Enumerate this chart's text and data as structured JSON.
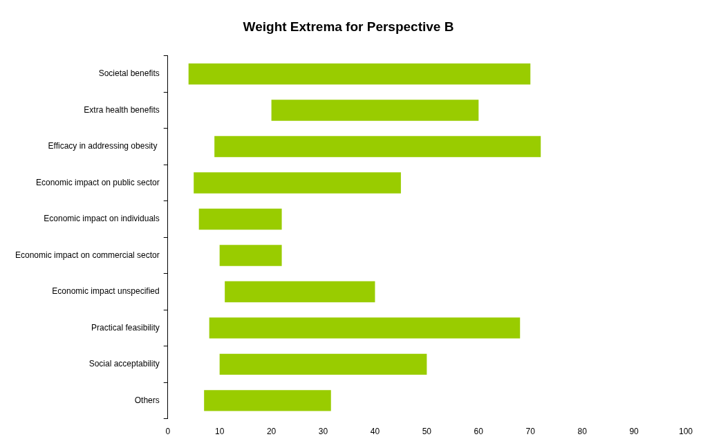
{
  "chart_data": {
    "type": "bar",
    "title": "Weight Extrema for Perspective B",
    "orientation": "horizontal",
    "categories": [
      "Societal benefits",
      "Extra health benefits",
      "Efficacy in addressing obesity ",
      "Economic impact on public sector",
      "Economic impact on individuals",
      "Economic impact on commercial sector",
      "Economic impact unspecified",
      "Practical feasibility",
      "Social acceptability",
      "Others"
    ],
    "base": [
      4,
      20,
      9,
      5,
      6,
      10,
      11,
      8,
      10,
      7
    ],
    "values": [
      66,
      40,
      63,
      40,
      16,
      12,
      29,
      60,
      40,
      24.5
    ],
    "color": "#99cc00",
    "xlim": [
      0,
      100
    ],
    "xticks": [
      0,
      10,
      20,
      30,
      40,
      50,
      60,
      70,
      80,
      90,
      100
    ],
    "legend": false
  }
}
